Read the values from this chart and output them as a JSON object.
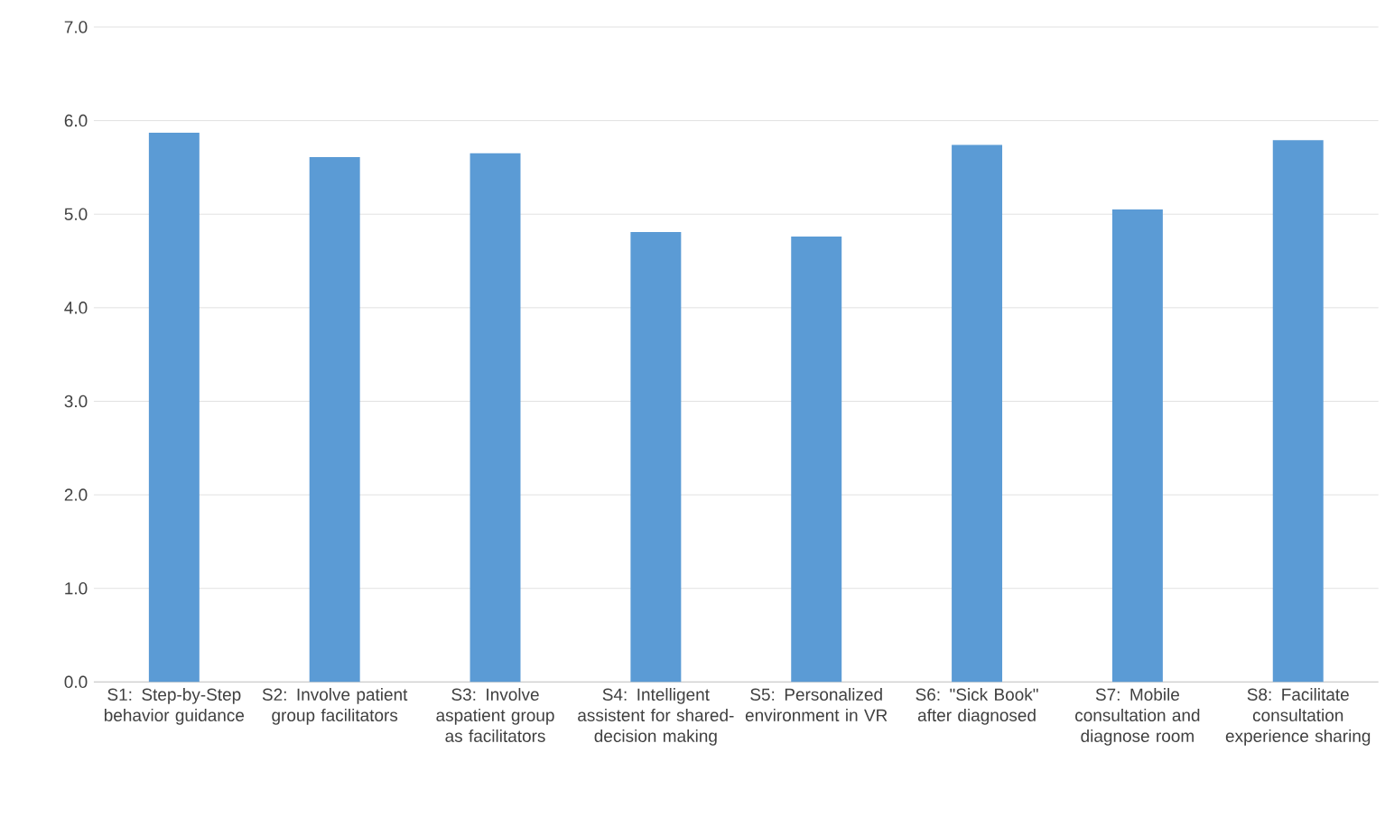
{
  "chart_data": {
    "type": "bar",
    "categories": [
      "S1: Step-by-Step behavior guidance",
      "S2: Involve patient group facilitators",
      "S3: Involve aspatient group as facilitators",
      "S4: Intelligent assistent for shared-decision making",
      "S5: Personalized environment in VR",
      "S6: \"Sick Book\" after diagnosed",
      "S7: Mobile consultation and diagnose room",
      "S8: Facilitate consultation experience sharing"
    ],
    "values": [
      5.87,
      5.61,
      5.65,
      4.81,
      4.76,
      5.74,
      5.05,
      5.79
    ],
    "color": "#5b9bd5",
    "ylim": [
      0,
      7
    ],
    "yticks": [
      {
        "value": 0,
        "label": "0.0"
      },
      {
        "value": 1,
        "label": "1.0"
      },
      {
        "value": 2,
        "label": "2.0"
      },
      {
        "value": 3,
        "label": "3.0"
      },
      {
        "value": 4,
        "label": "4.0"
      },
      {
        "value": 5,
        "label": "5.0"
      },
      {
        "value": 6,
        "label": "6.0"
      },
      {
        "value": 7,
        "label": "7.0"
      }
    ],
    "grid": "y"
  }
}
